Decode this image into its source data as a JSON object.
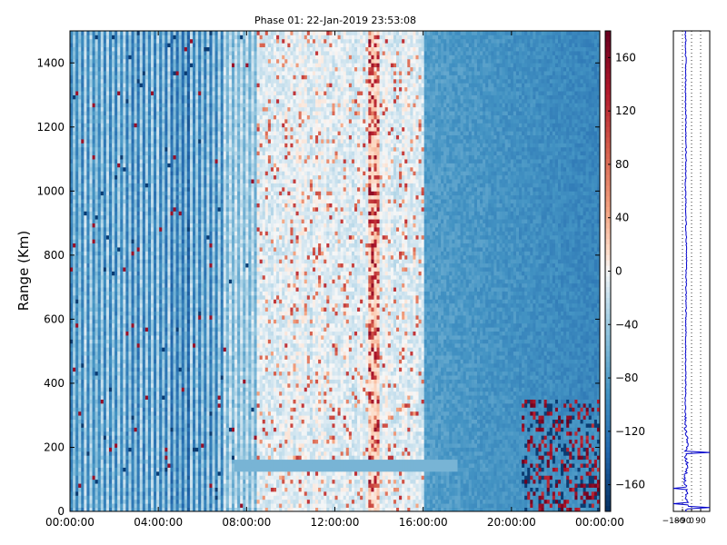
{
  "chart_data": [
    {
      "type": "heatmap",
      "title": "Phase 01: 22-Jan-2019 23:53:08",
      "xlabel": "",
      "ylabel": "Range (Km)",
      "x_ticks": [
        "00:00:00",
        "04:00:00",
        "08:00:00",
        "12:00:00",
        "16:00:00",
        "20:00:00",
        "00:00:00"
      ],
      "x_range_hours": [
        0,
        24
      ],
      "y_ticks": [
        0,
        200,
        400,
        600,
        800,
        1000,
        1200,
        1400
      ],
      "ylim": [
        0,
        1500
      ],
      "colorbar": {
        "colormap": "RdBu_r",
        "ticks": [
          160,
          120,
          80,
          40,
          0,
          -40,
          -80,
          -120,
          -160
        ],
        "range": [
          -180,
          180
        ]
      },
      "description": "Phase values across time (x) and range (y); predominantly light to medium blue (-20 to -100), vertical banding from 00:00 to 07:00, warmer speckles around 08:00-16:00 with a red column near 13:45, smoother uniform blue after 16:00, dense red/blue speckles near 21:00-24:00 below 350 km, thin horizontal band near 150 km from 08:00 to 17:00.",
      "grid": false
    },
    {
      "type": "line",
      "title": "",
      "xlabel": "",
      "ylabel": "",
      "x_ticks": [
        "-180",
        "-90",
        "0",
        "90"
      ],
      "xlim": [
        -180,
        180
      ],
      "ylim": [
        0,
        1500
      ],
      "series": [
        {
          "y": [
            0,
            25,
            40,
            60,
            80,
            100,
            130,
            150,
            170,
            190,
            200,
            220,
            240,
            260,
            300,
            350,
            400,
            450,
            500,
            600,
            700,
            800,
            900,
            1000,
            1100,
            1200,
            1300,
            1400,
            1500
          ],
          "x": [
            -50,
            -40,
            -55,
            -45,
            -60,
            -70,
            -50,
            -40,
            -60,
            -55,
            -50,
            -45,
            -55,
            -60,
            -62,
            -60,
            -58,
            -60,
            -58,
            -56,
            -55,
            -50,
            -55,
            -60,
            -55,
            -55,
            -60,
            -57,
            -60
          ]
        }
      ],
      "grid_vertical_dotted": true
    }
  ]
}
